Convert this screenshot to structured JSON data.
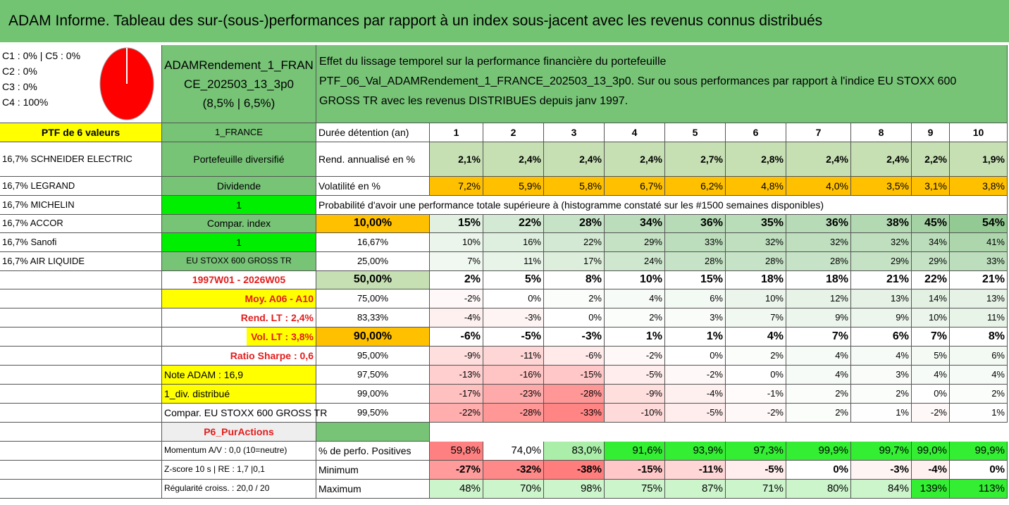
{
  "title": "ADAM Informe. Tableau des sur-(sous-)performances par rapport à un index sous-jacent avec les revenus connus distribués",
  "colors": {
    "header_green": "#72c472",
    "light_green": "#c6e0b4",
    "bright_green": "#00ee00",
    "yellow": "#ffff00",
    "orange": "#ffc000",
    "red_text": "#e31d1d",
    "pie_red": "#ff0000"
  },
  "pie": {
    "icon": "pie-chart-icon",
    "c1": "C1 : 0% | C5 : 0%",
    "c2": "C2 : 0%",
    "c3": "C3 : 0%",
    "c4": "C4 : 100%"
  },
  "fund": {
    "name_l1": "ADAMRendement_1_FRAN",
    "name_l2": "CE_202503_13_3p0",
    "rates": "(8,5% | 6,5%)"
  },
  "description": {
    "l1": "Effet du lissage temporel sur la performance financière du portefeuille",
    "l2": "PTF_06_Val_ADAMRendement_1_FRANCE_202503_13_3p0. Sur ou sous performances par rapport à l'indice EU STOXX 600",
    "l3": "GROSS TR avec les revenus DISTRIBUES depuis janv 1997."
  },
  "left": {
    "ptf": "PTF de 6 valeurs",
    "holdings": [
      "16,7% SCHNEIDER ELECTRIC",
      "16,7% LEGRAND",
      "16,7% MICHELIN",
      "16,7% ACCOR",
      "16,7% Sanofi",
      "16,7% AIR LIQUIDE"
    ]
  },
  "mid": {
    "country": "1_FRANCE",
    "diversified": "Portefeuille diversifié",
    "dividend": "Dividende",
    "one_a": "1",
    "compar_index": "Compar. index",
    "one_b": "1",
    "index_name": "EU STOXX 600 GROSS TR",
    "period": "1997W01 - 2026W05",
    "moy": "Moy. A06 - A10",
    "rend_lt": "Rend. LT : 2,4%",
    "vol_lt": "Vol. LT : 3,8%",
    "sharpe": "Ratio Sharpe : 0,6",
    "note": "Note ADAM : 16,9",
    "div": "1_div. distribué",
    "compar": "Compar. EU STOXX 600 GROSS TR",
    "p6": "P6_PurActions",
    "momentum": "Momentum A/V : 0,0 (10=neutre)",
    "zscore": "Z-score 10 s | RE : 1,7 |0,1",
    "regularite": "Régularité croiss. : 20,0 / 20"
  },
  "table": {
    "duree_label": "Durée détention (an)",
    "years": [
      "1",
      "2",
      "3",
      "4",
      "5",
      "6",
      "7",
      "8",
      "9",
      "10"
    ],
    "rend_label": "Rend. annualisé en %",
    "rend": [
      "2,1%",
      "2,4%",
      "2,4%",
      "2,4%",
      "2,7%",
      "2,8%",
      "2,4%",
      "2,4%",
      "2,2%",
      "1,9%"
    ],
    "vol_label": "Volatilité en %",
    "vol": [
      "7,2%",
      "5,9%",
      "5,8%",
      "6,7%",
      "6,2%",
      "4,8%",
      "4,0%",
      "3,5%",
      "3,1%",
      "3,8%"
    ],
    "prob_title": "Probabilité d'avoir une performance totale supérieure à (histogramme constaté sur les #1500 semaines disponibles)",
    "quantiles": [
      {
        "label": "10,00%",
        "values": [
          "15%",
          "22%",
          "28%",
          "34%",
          "36%",
          "35%",
          "36%",
          "38%",
          "45%",
          "54%"
        ]
      },
      {
        "label": "16,67%",
        "values": [
          "10%",
          "16%",
          "22%",
          "29%",
          "33%",
          "32%",
          "32%",
          "32%",
          "34%",
          "41%"
        ]
      },
      {
        "label": "25,00%",
        "values": [
          "7%",
          "11%",
          "17%",
          "24%",
          "28%",
          "28%",
          "28%",
          "29%",
          "29%",
          "33%"
        ]
      },
      {
        "label": "50,00%",
        "values": [
          "2%",
          "5%",
          "8%",
          "10%",
          "15%",
          "18%",
          "18%",
          "21%",
          "22%",
          "21%"
        ]
      },
      {
        "label": "75,00%",
        "values": [
          "-2%",
          "0%",
          "2%",
          "4%",
          "6%",
          "10%",
          "12%",
          "13%",
          "14%",
          "13%"
        ]
      },
      {
        "label": "83,33%",
        "values": [
          "-4%",
          "-3%",
          "0%",
          "2%",
          "3%",
          "7%",
          "9%",
          "9%",
          "10%",
          "11%"
        ]
      },
      {
        "label": "90,00%",
        "values": [
          "-6%",
          "-5%",
          "-3%",
          "1%",
          "1%",
          "4%",
          "7%",
          "6%",
          "7%",
          "8%"
        ]
      },
      {
        "label": "95,00%",
        "values": [
          "-9%",
          "-11%",
          "-6%",
          "-2%",
          "0%",
          "2%",
          "4%",
          "4%",
          "5%",
          "6%"
        ]
      },
      {
        "label": "97,50%",
        "values": [
          "-13%",
          "-16%",
          "-15%",
          "-5%",
          "-2%",
          "0%",
          "4%",
          "3%",
          "4%",
          "4%"
        ]
      },
      {
        "label": "99,00%",
        "values": [
          "-17%",
          "-23%",
          "-28%",
          "-9%",
          "-4%",
          "-1%",
          "2%",
          "2%",
          "0%",
          "2%"
        ]
      },
      {
        "label": "99,50%",
        "values": [
          "-22%",
          "-28%",
          "-33%",
          "-10%",
          "-5%",
          "-2%",
          "2%",
          "1%",
          "-2%",
          "1%"
        ]
      }
    ],
    "pos_label": "% de perfo. Positives",
    "pos": [
      "59,8%",
      "74,0%",
      "83,0%",
      "91,6%",
      "93,9%",
      "97,3%",
      "99,9%",
      "99,7%",
      "99,0%",
      "99,9%"
    ],
    "min_label": "Minimum",
    "min": [
      "-27%",
      "-32%",
      "-38%",
      "-15%",
      "-11%",
      "-5%",
      "0%",
      "-3%",
      "-4%",
      "0%"
    ],
    "max_label": "Maximum",
    "max": [
      "48%",
      "70%",
      "98%",
      "75%",
      "87%",
      "71%",
      "80%",
      "84%",
      "139%",
      "113%"
    ]
  }
}
